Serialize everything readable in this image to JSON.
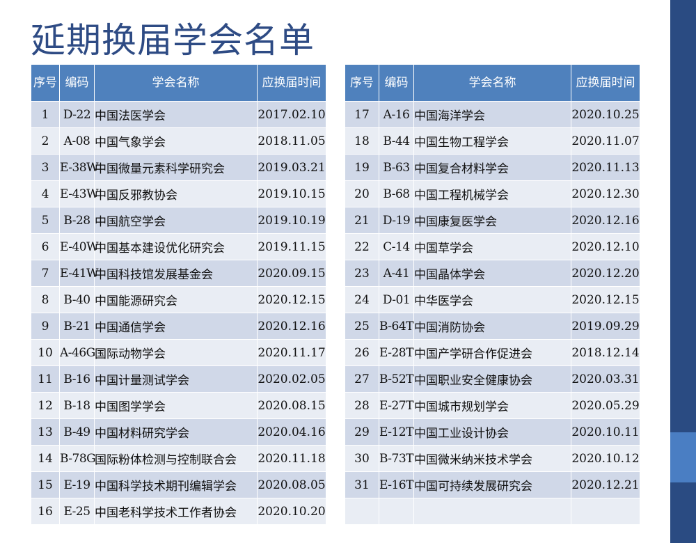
{
  "page": {
    "title": "延期换届学会名单",
    "accent_color": "#2A4B82",
    "header_color": "#4F81BD"
  },
  "table": {
    "headers": {
      "no": "序号",
      "code": "编码",
      "name": "学会名称",
      "date": "应换届时间"
    },
    "left_rows": [
      {
        "no": "1",
        "code": "D-22",
        "name": "中国法医学会",
        "date": "2017.02.10"
      },
      {
        "no": "2",
        "code": "A-08",
        "name": "中国气象学会",
        "date": "2018.11.05"
      },
      {
        "no": "3",
        "code": "E-38W",
        "name": "中国微量元素科学研究会",
        "date": "2019.03.21"
      },
      {
        "no": "4",
        "code": "E-43W",
        "name": "中国反邪教协会",
        "date": "2019.10.15"
      },
      {
        "no": "5",
        "code": "B-28",
        "name": "中国航空学会",
        "date": "2019.10.19"
      },
      {
        "no": "6",
        "code": "E-40W",
        "name": "中国基本建设优化研究会",
        "date": "2019.11.15"
      },
      {
        "no": "7",
        "code": "E-41W",
        "name": "中国科技馆发展基金会",
        "date": "2020.09.15"
      },
      {
        "no": "8",
        "code": "B-40",
        "name": "中国能源研究会",
        "date": "2020.12.15"
      },
      {
        "no": "9",
        "code": "B-21",
        "name": "中国通信学会",
        "date": "2020.12.16"
      },
      {
        "no": "10",
        "code": "A-46G",
        "name": "国际动物学会",
        "date": "2020.11.17"
      },
      {
        "no": "11",
        "code": "B-16",
        "name": "中国计量测试学会",
        "date": "2020.02.05"
      },
      {
        "no": "12",
        "code": "B-18",
        "name": "中国图学学会",
        "date": "2020.08.15"
      },
      {
        "no": "13",
        "code": "B-49",
        "name": "中国材料研究学会",
        "date": "2020.04.16"
      },
      {
        "no": "14",
        "code": "B-78G",
        "name": "国际粉体检测与控制联合会",
        "date": "2020.11.18"
      },
      {
        "no": "15",
        "code": "E-19",
        "name": "中国科学技术期刊编辑学会",
        "date": "2020.08.05"
      },
      {
        "no": "16",
        "code": "E-25",
        "name": "中国老科学技术工作者协会",
        "date": "2020.10.20"
      }
    ],
    "right_rows": [
      {
        "no": "17",
        "code": "A-16",
        "name": "中国海洋学会",
        "date": "2020.10.25"
      },
      {
        "no": "18",
        "code": "B-44",
        "name": "中国生物工程学会",
        "date": "2020.11.07"
      },
      {
        "no": "19",
        "code": "B-63",
        "name": "中国复合材料学会",
        "date": "2020.11.13"
      },
      {
        "no": "20",
        "code": "B-68",
        "name": "中国工程机械学会",
        "date": "2020.12.30"
      },
      {
        "no": "21",
        "code": "D-19",
        "name": "中国康复医学会",
        "date": "2020.12.16"
      },
      {
        "no": "22",
        "code": "C-14",
        "name": "中国草学会",
        "date": "2020.12.10"
      },
      {
        "no": "23",
        "code": "A-41",
        "name": "中国晶体学会",
        "date": "2020.12.20"
      },
      {
        "no": "24",
        "code": "D-01",
        "name": "中华医学会",
        "date": "2020.12.15"
      },
      {
        "no": "25",
        "code": "B-64T",
        "name": "中国消防协会",
        "date": "2019.09.29"
      },
      {
        "no": "26",
        "code": "E-28T",
        "name": "中国产学研合作促进会",
        "date": "2018.12.14"
      },
      {
        "no": "27",
        "code": "B-52T",
        "name": "中国职业安全健康协会",
        "date": "2020.03.31"
      },
      {
        "no": "28",
        "code": "E-27T",
        "name": "中国城市规划学会",
        "date": "2020.05.29"
      },
      {
        "no": "29",
        "code": "E-12T",
        "name": "中国工业设计协会",
        "date": "2020.10.11"
      },
      {
        "no": "30",
        "code": "B-73T",
        "name": "中国微米纳米技术学会",
        "date": "2020.10.12"
      },
      {
        "no": "31",
        "code": "E-16T",
        "name": "中国可持续发展研究会",
        "date": "2020.12.21"
      },
      {
        "no": "",
        "code": "",
        "name": "",
        "date": ""
      }
    ]
  }
}
